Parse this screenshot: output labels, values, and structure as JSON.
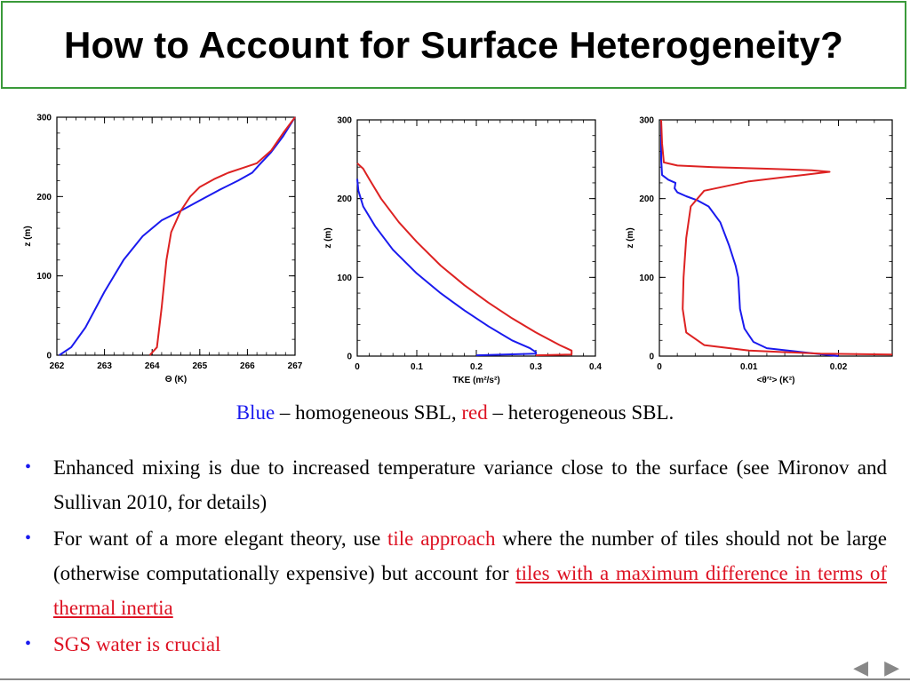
{
  "slide": {
    "title": "How to Account for Surface Heterogeneity?",
    "caption": {
      "blue_word": "Blue",
      "part1": " – homogeneous SBL, ",
      "red_word": "red",
      "part2": " – heterogeneous SBL."
    },
    "bullets": [
      {
        "parts": [
          {
            "text": "Enhanced mixing is due to increased temperature variance close to the surface (see Mironov and Sullivan 2010, for details)",
            "style": "normal"
          }
        ]
      },
      {
        "parts": [
          {
            "text": "For want of a more elegant theory, use ",
            "style": "normal"
          },
          {
            "text": "tile approach",
            "style": "red"
          },
          {
            "text": " where the number of tiles should not be large (otherwise computationally expensive) but account for ",
            "style": "normal"
          },
          {
            "text": "tiles with a maximum difference in terms of thermal inertia",
            "style": "red-underline"
          }
        ]
      },
      {
        "parts": [
          {
            "text": "SGS water is crucial",
            "style": "red"
          }
        ]
      }
    ],
    "bullet_symbol": "•",
    "nav": {
      "prev_icon": "◀",
      "next_icon": "▶"
    }
  },
  "colors": {
    "blue": "#1a1aee",
    "red": "#dd1122",
    "title_border": "#3a9a3a"
  },
  "chart_data": [
    {
      "type": "line",
      "xlabel": "Θ (K)",
      "ylabel": "z (m)",
      "xlim": [
        262,
        267
      ],
      "ylim": [
        0,
        300
      ],
      "xticks": [
        "262",
        "263",
        "264",
        "265",
        "266",
        "267"
      ],
      "yticks": [
        "0",
        "100",
        "200",
        "300"
      ],
      "series": [
        {
          "color": "blue",
          "x": [
            262.05,
            262.3,
            262.6,
            263.0,
            263.4,
            263.8,
            264.2,
            264.6,
            265.0,
            265.4,
            265.8,
            266.1,
            266.25,
            266.5,
            266.75,
            267.0
          ],
          "y": [
            0,
            10,
            35,
            80,
            120,
            150,
            170,
            182,
            195,
            208,
            220,
            230,
            240,
            256,
            276,
            300
          ]
        },
        {
          "color": "red",
          "x": [
            263.95,
            264.1,
            264.2,
            264.3,
            264.4,
            264.6,
            264.8,
            265.0,
            265.3,
            265.6,
            265.9,
            266.2,
            266.5,
            266.75,
            267.0
          ],
          "y": [
            0,
            10,
            60,
            120,
            155,
            182,
            200,
            212,
            222,
            230,
            236,
            242,
            258,
            280,
            300
          ]
        }
      ]
    },
    {
      "type": "line",
      "xlabel": "TKE (m²/s²)",
      "ylabel": "z (m)",
      "xlim": [
        0,
        0.4
      ],
      "ylim": [
        0,
        300
      ],
      "xticks": [
        "0",
        "0.1",
        "0.2",
        "0.3",
        "0.4"
      ],
      "yticks": [
        "0",
        "100",
        "200",
        "300"
      ],
      "series": [
        {
          "color": "blue",
          "x": [
            0.0,
            0.002,
            0.01,
            0.03,
            0.06,
            0.1,
            0.14,
            0.18,
            0.22,
            0.26,
            0.29,
            0.3,
            0.3,
            0.2
          ],
          "y": [
            225,
            210,
            190,
            165,
            135,
            105,
            80,
            58,
            38,
            20,
            10,
            5,
            3,
            1
          ]
        },
        {
          "color": "red",
          "x": [
            0.0,
            0.01,
            0.02,
            0.04,
            0.07,
            0.1,
            0.14,
            0.18,
            0.22,
            0.26,
            0.3,
            0.34,
            0.36,
            0.36,
            0.3
          ],
          "y": [
            245,
            238,
            225,
            200,
            170,
            145,
            115,
            90,
            68,
            48,
            30,
            14,
            7,
            2,
            1
          ]
        }
      ]
    },
    {
      "type": "line",
      "xlabel": "<θ′²> (K²)",
      "ylabel": "z (m)",
      "xlim": [
        0,
        0.026
      ],
      "ylim": [
        0,
        300
      ],
      "xticks": [
        "0",
        "0.01",
        "0.02"
      ],
      "yticks": [
        "0",
        "100",
        "200",
        "300"
      ],
      "series": [
        {
          "color": "blue",
          "x": [
            0.0002,
            0.0002,
            0.0002,
            0.0003,
            0.001,
            0.0018,
            0.0017,
            0.002,
            0.003,
            0.0042,
            0.0055,
            0.0068,
            0.0078,
            0.0085,
            0.0088,
            0.009,
            0.0095,
            0.0105,
            0.012,
            0.016,
            0.02
          ],
          "y": [
            300,
            270,
            250,
            230,
            224,
            220,
            213,
            208,
            203,
            198,
            190,
            170,
            140,
            115,
            100,
            60,
            35,
            18,
            10,
            5,
            0
          ]
        },
        {
          "color": "red",
          "x": [
            0.0002,
            0.0003,
            0.0005,
            0.002,
            0.006,
            0.012,
            0.017,
            0.019,
            0.016,
            0.01,
            0.005,
            0.0035,
            0.003,
            0.0027,
            0.0026,
            0.003,
            0.005,
            0.01,
            0.018,
            0.026
          ],
          "y": [
            300,
            270,
            246,
            242,
            240,
            238,
            236,
            234,
            230,
            222,
            210,
            190,
            150,
            100,
            60,
            30,
            14,
            7,
            3,
            2
          ]
        }
      ]
    }
  ]
}
